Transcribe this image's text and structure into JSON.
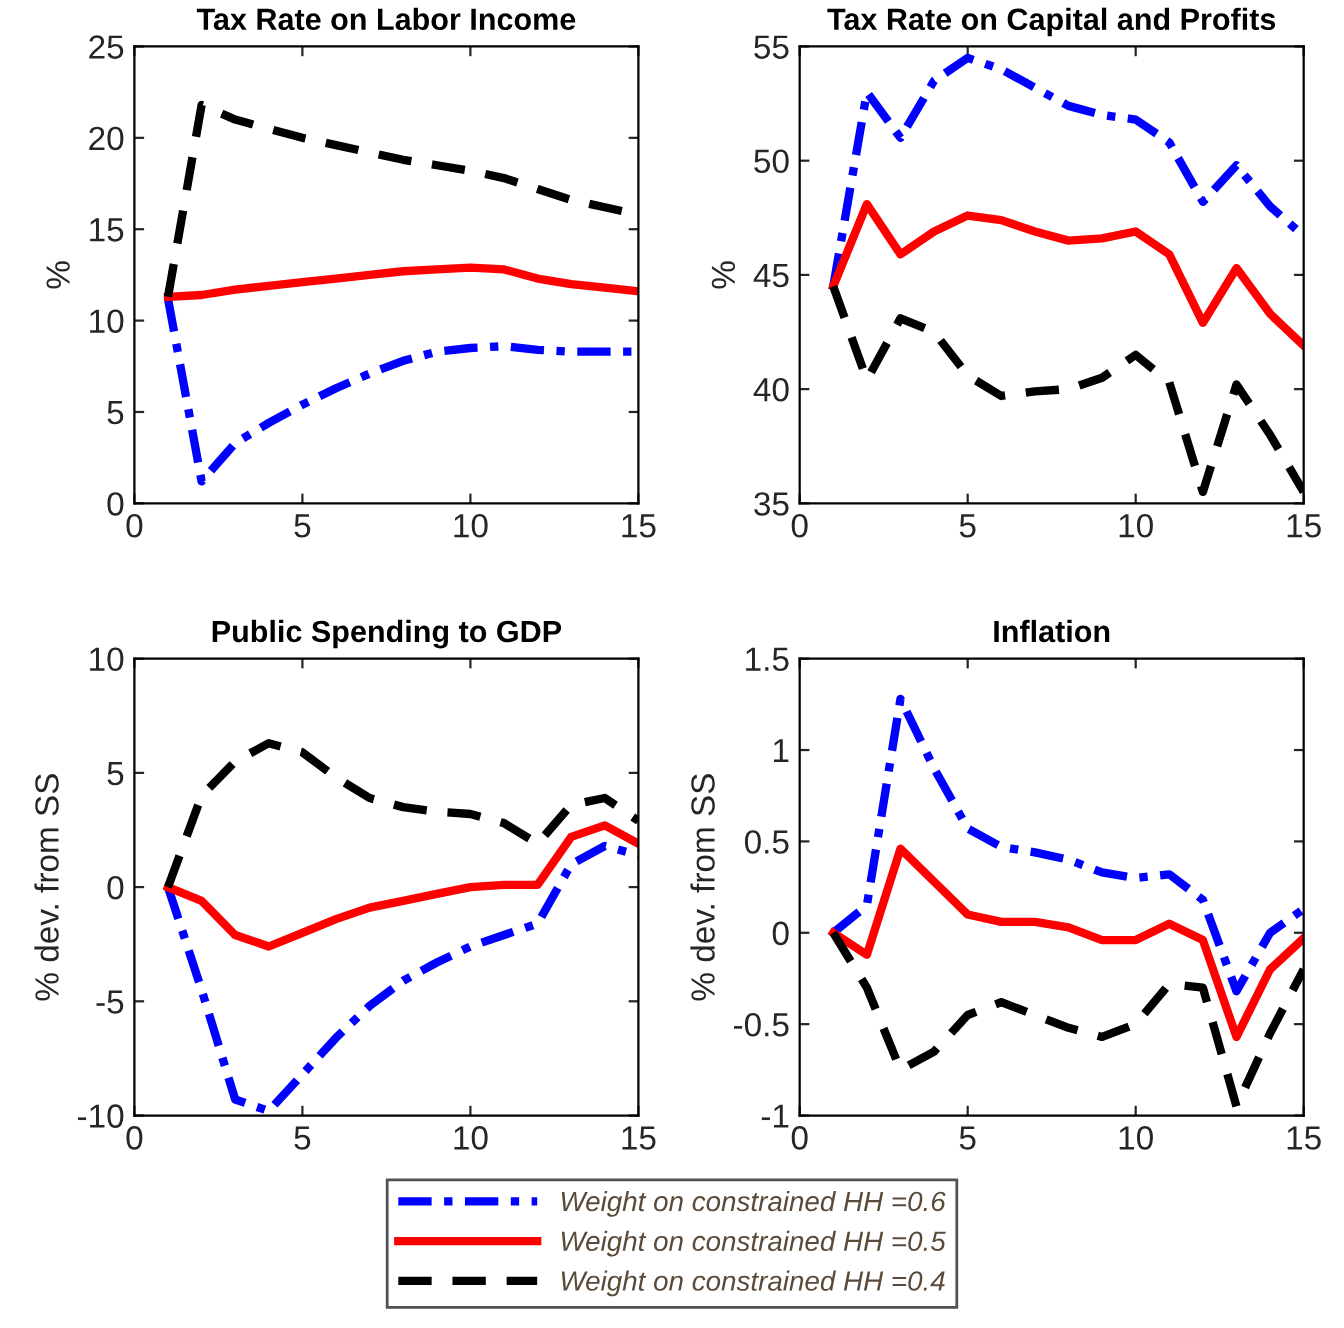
{
  "chart_data": [
    {
      "type": "line",
      "title": "Tax Rate on Labor Income",
      "ylabel": "%",
      "x": [
        1,
        2,
        3,
        4,
        5,
        6,
        7,
        8,
        9,
        10,
        11,
        12,
        13,
        14,
        15
      ],
      "xlim": [
        0,
        15
      ],
      "xticks": [
        0,
        5,
        10,
        15
      ],
      "ylim": [
        0,
        25
      ],
      "yticks": [
        0,
        5,
        10,
        15,
        20,
        25
      ],
      "grid": false,
      "legend": "bottom",
      "series": [
        {
          "name": "Weight on constrained HH =0.6",
          "color": "#0000ff",
          "line_style": "dashdot",
          "values": [
            11.2,
            1.2,
            3.3,
            4.4,
            5.4,
            6.3,
            7.1,
            7.8,
            8.3,
            8.5,
            8.6,
            8.4,
            8.3,
            8.3,
            8.3
          ]
        },
        {
          "name": "Weight on constrained HH =0.5",
          "color": "#ff0000",
          "line_style": "solid",
          "values": [
            11.3,
            11.4,
            11.7,
            11.9,
            12.1,
            12.3,
            12.5,
            12.7,
            12.8,
            12.9,
            12.8,
            12.3,
            12.0,
            11.8,
            11.6
          ]
        },
        {
          "name": "Weight on constrained HH =0.4",
          "color": "#000000",
          "line_style": "dashed",
          "values": [
            11.3,
            21.8,
            21.0,
            20.5,
            20.0,
            19.6,
            19.2,
            18.8,
            18.5,
            18.2,
            17.8,
            17.2,
            16.6,
            16.2,
            15.8
          ]
        }
      ]
    },
    {
      "type": "line",
      "title": "Tax Rate on Capital and Profits",
      "ylabel": "%",
      "x": [
        1,
        2,
        3,
        4,
        5,
        6,
        7,
        8,
        9,
        10,
        11,
        12,
        13,
        14,
        15
      ],
      "xlim": [
        0,
        15
      ],
      "xticks": [
        0,
        5,
        10,
        15
      ],
      "ylim": [
        35,
        55
      ],
      "yticks": [
        35,
        40,
        45,
        50,
        55
      ],
      "grid": false,
      "series": [
        {
          "color": "#0000ff",
          "line_style": "dashdot",
          "values": [
            44.5,
            53.0,
            51.0,
            53.5,
            54.5,
            54.0,
            53.2,
            52.4,
            52.0,
            51.8,
            50.8,
            48.2,
            49.8,
            48.0,
            46.7
          ]
        },
        {
          "color": "#ff0000",
          "line_style": "solid",
          "values": [
            44.5,
            48.1,
            45.9,
            46.9,
            47.6,
            47.4,
            46.9,
            46.5,
            46.6,
            46.9,
            45.9,
            42.9,
            45.3,
            43.3,
            41.9
          ]
        },
        {
          "color": "#000000",
          "line_style": "dashed",
          "values": [
            44.5,
            40.4,
            43.1,
            42.5,
            40.6,
            39.7,
            39.9,
            40.0,
            40.5,
            41.5,
            40.3,
            35.5,
            40.2,
            38.0,
            35.5
          ]
        }
      ]
    },
    {
      "type": "line",
      "title": "Public Spending to GDP",
      "ylabel": "% dev. from SS",
      "x": [
        1,
        2,
        3,
        4,
        5,
        6,
        7,
        8,
        9,
        10,
        11,
        12,
        13,
        14,
        15
      ],
      "xlim": [
        0,
        15
      ],
      "xticks": [
        0,
        5,
        10,
        15
      ],
      "ylim": [
        -10,
        10
      ],
      "yticks": [
        -10,
        -5,
        0,
        5,
        10
      ],
      "grid": false,
      "series": [
        {
          "color": "#0000ff",
          "line_style": "dashdot",
          "values": [
            0,
            -4.5,
            -9.3,
            -9.8,
            -8.2,
            -6.6,
            -5.2,
            -4.1,
            -3.3,
            -2.6,
            -2.1,
            -1.6,
            1.0,
            1.8,
            1.4
          ]
        },
        {
          "color": "#ff0000",
          "line_style": "solid",
          "values": [
            0,
            -0.6,
            -2.1,
            -2.6,
            -2.0,
            -1.4,
            -0.9,
            -0.6,
            -0.3,
            0.0,
            0.1,
            0.1,
            2.2,
            2.7,
            1.9
          ]
        },
        {
          "color": "#000000",
          "line_style": "dashed",
          "values": [
            0,
            4.0,
            5.5,
            6.3,
            5.9,
            4.8,
            3.9,
            3.5,
            3.3,
            3.2,
            2.8,
            1.9,
            3.6,
            3.9,
            2.9
          ]
        }
      ]
    },
    {
      "type": "line",
      "title": "Inflation",
      "ylabel": "% dev. from SS",
      "x": [
        1,
        2,
        3,
        4,
        5,
        6,
        7,
        8,
        9,
        10,
        11,
        12,
        13,
        14,
        15
      ],
      "xlim": [
        0,
        15
      ],
      "xticks": [
        0,
        5,
        10,
        15
      ],
      "ylim": [
        -1,
        1.5
      ],
      "yticks": [
        -1,
        -0.5,
        0,
        0.5,
        1,
        1.5
      ],
      "grid": false,
      "series": [
        {
          "color": "#0000ff",
          "line_style": "dashdot",
          "values": [
            0,
            0.15,
            1.28,
            0.9,
            0.57,
            0.47,
            0.44,
            0.4,
            0.33,
            0.3,
            0.32,
            0.18,
            -0.32,
            0.0,
            0.13
          ]
        },
        {
          "color": "#ff0000",
          "line_style": "solid",
          "values": [
            0,
            -0.12,
            0.46,
            0.28,
            0.1,
            0.06,
            0.06,
            0.03,
            -0.04,
            -0.04,
            0.05,
            -0.04,
            -0.57,
            -0.2,
            -0.03
          ]
        },
        {
          "color": "#000000",
          "line_style": "dashed",
          "values": [
            0,
            -0.3,
            -0.75,
            -0.65,
            -0.45,
            -0.38,
            -0.45,
            -0.52,
            -0.57,
            -0.5,
            -0.28,
            -0.3,
            -0.95,
            -0.55,
            -0.2
          ]
        }
      ]
    }
  ]
}
